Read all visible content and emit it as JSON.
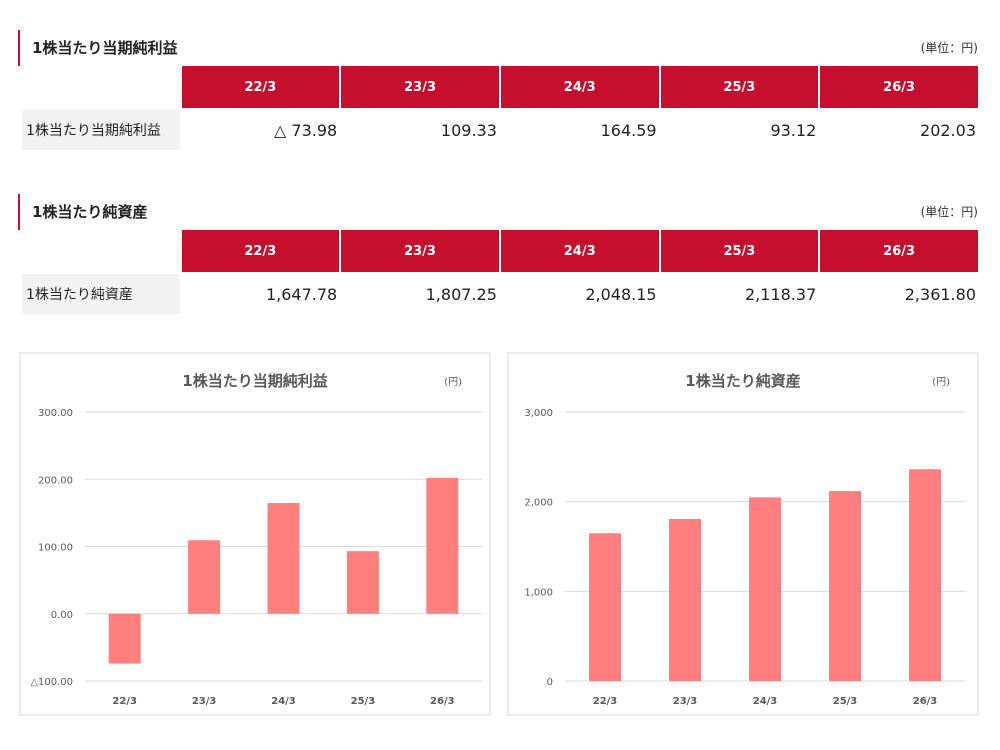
{
  "sections": [
    {
      "title": "1株当たり当期純利益",
      "unit": "(単位：円)",
      "header": [
        "22/3",
        "23/3",
        "24/3",
        "25/3",
        "26/3"
      ],
      "rows": [
        [
          "1株当たり当期純利益",
          "△ 73.98",
          "109.33",
          "164.59",
          "93.12",
          "202.03"
        ]
      ]
    },
    {
      "title": "1株当たり純資産",
      "unit": "(単位：円)",
      "header": [
        "22/3",
        "23/3",
        "24/3",
        "25/3",
        "26/3"
      ],
      "rows": [
        [
          "1株当たり純資産",
          "1,647.78",
          "1,807.25",
          "2,048.15",
          "2,118.37",
          "2,361.80"
        ]
      ]
    }
  ],
  "chart_data": [
    {
      "type": "bar",
      "title": "1株当たり当期純利益",
      "unit": "(円)",
      "categories": [
        "22/3",
        "23/3",
        "24/3",
        "25/3",
        "26/3"
      ],
      "values": [
        -73.98,
        109.33,
        164.59,
        93.12,
        202.03
      ],
      "color": "#ff7f7f",
      "ylim": [
        -100,
        300
      ],
      "yticks": [
        {
          "value": -100,
          "label": "△100.00"
        },
        {
          "value": 0,
          "label": "0.00"
        },
        {
          "value": 100,
          "label": "100.00"
        },
        {
          "value": 200,
          "label": "200.00"
        },
        {
          "value": 300,
          "label": "300.00"
        }
      ],
      "grid": true
    },
    {
      "type": "bar",
      "title": "1株当たり純資産",
      "unit": "(円)",
      "categories": [
        "22/3",
        "23/3",
        "24/3",
        "25/3",
        "26/3"
      ],
      "values": [
        1647.78,
        1807.25,
        2048.15,
        2118.37,
        2361.8
      ],
      "color": "#ff7f7f",
      "ylim": [
        0,
        3000
      ],
      "yticks": [
        0,
        {
          "value": 1000,
          "label": "1,000"
        },
        {
          "value": 2000,
          "label": "2,000"
        },
        {
          "value": 3000,
          "label": "3,000"
        }
      ],
      "grid": true
    }
  ]
}
